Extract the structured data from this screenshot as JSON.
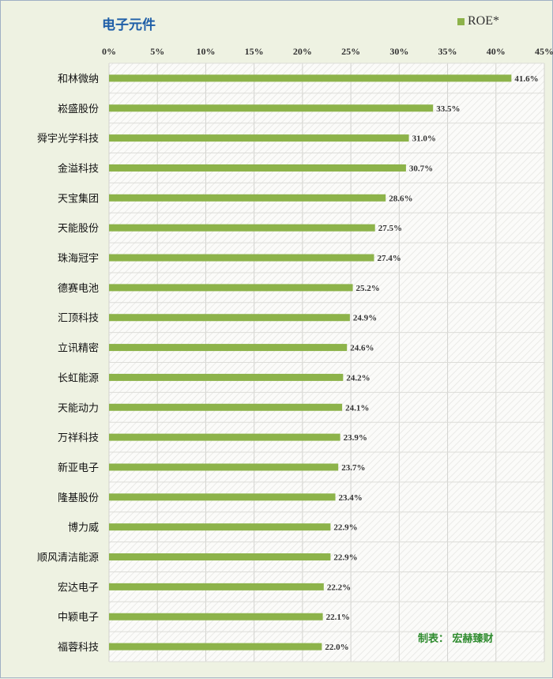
{
  "chart_data": {
    "type": "bar",
    "orientation": "horizontal",
    "title": "电子元件",
    "series_name": "ROE*",
    "categories": [
      "和林微纳",
      "崧盛股份",
      "舜宇光学科技",
      "金溢科技",
      "天宝集团",
      "天能股份",
      "珠海冠宇",
      "德赛电池",
      "汇顶科技",
      "立讯精密",
      "长虹能源",
      "天能动力",
      "万祥科技",
      "新亚电子",
      "隆基股份",
      "博力威",
      "顺风清洁能源",
      "宏达电子",
      "中颖电子",
      "福蓉科技"
    ],
    "values": [
      41.6,
      33.5,
      31.0,
      30.7,
      28.6,
      27.5,
      27.4,
      25.2,
      24.9,
      24.6,
      24.2,
      24.1,
      23.9,
      23.7,
      23.4,
      22.9,
      22.9,
      22.2,
      22.1,
      22.0
    ],
    "value_labels": [
      "41.6%",
      "33.5%",
      "31.0%",
      "30.7%",
      "28.6%",
      "27.5%",
      "27.4%",
      "25.2%",
      "24.9%",
      "24.6%",
      "24.2%",
      "24.1%",
      "23.9%",
      "23.7%",
      "23.4%",
      "22.9%",
      "22.9%",
      "22.2%",
      "22.1%",
      "22.0%"
    ],
    "x_ticks": [
      0,
      5,
      10,
      15,
      20,
      25,
      30,
      35,
      40,
      45
    ],
    "x_tick_labels": [
      "0%",
      "5%",
      "10%",
      "15%",
      "20%",
      "25%",
      "30%",
      "35%",
      "40%",
      "45%"
    ],
    "xlim": [
      0,
      45
    ],
    "axis_position": "top",
    "legend_position": "top-right",
    "grid": true,
    "bar_color": "#8db34a",
    "title_color": "#1f5fa8"
  },
  "credit": "制表：  宏赫臻财"
}
